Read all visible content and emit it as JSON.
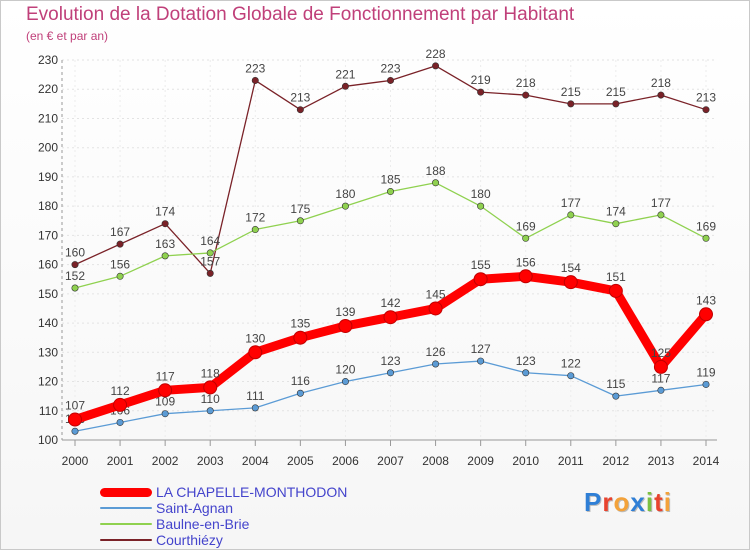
{
  "header": {
    "title": "Evolution de la Dotation Globale de Fonctionnement par Habitant",
    "subtitle": "(en € et par an)"
  },
  "logo": {
    "letters": [
      "P",
      "r",
      "o",
      "x",
      "i",
      "t",
      "i"
    ],
    "colors": [
      "#2f7fd6",
      "#e8432e",
      "#f3a23a",
      "#2f7fd6",
      "#7cc142",
      "#e8432e",
      "#f3a23a"
    ]
  },
  "chart_data": {
    "type": "line",
    "title": "Evolution de la Dotation Globale de Fonctionnement par Habitant",
    "subtitle": "(en € et par an)",
    "xlabel": "",
    "ylabel": "",
    "ylim": [
      100,
      230
    ],
    "yticks": [
      100,
      110,
      120,
      130,
      140,
      150,
      160,
      170,
      180,
      190,
      200,
      210,
      220,
      230
    ],
    "categories": [
      "2000",
      "2001",
      "2002",
      "2003",
      "2004",
      "2005",
      "2006",
      "2007",
      "2008",
      "2009",
      "2010",
      "2011",
      "2012",
      "2013",
      "2014"
    ],
    "grid": true,
    "legend_position": "bottom-left",
    "series": [
      {
        "name": "Courthiézy",
        "color": "#7a2228",
        "values": [
          160,
          167,
          174,
          157,
          223,
          213,
          221,
          223,
          228,
          219,
          218,
          215,
          215,
          218,
          213
        ],
        "labels": [
          "160",
          "167",
          "174",
          "157",
          "223",
          "213",
          "221",
          "223",
          "228",
          "219",
          "218",
          "215",
          "215",
          "218",
          "213"
        ]
      },
      {
        "name": "Baulne-en-Brie",
        "color": "#8fd14f",
        "values": [
          152,
          156,
          163,
          164,
          172,
          175,
          180,
          185,
          188,
          180,
          169,
          177,
          174,
          177,
          169
        ],
        "labels": [
          "152",
          "156",
          "163",
          "164",
          "172",
          "175",
          "180",
          "185",
          "188",
          "180",
          "169",
          "177",
          "174",
          "177",
          "169"
        ]
      },
      {
        "name": "Saint-Agnan",
        "color": "#5b9bd5",
        "values": [
          103,
          106,
          109,
          110,
          111,
          116,
          120,
          123,
          126,
          127,
          123,
          122,
          115,
          117,
          119
        ],
        "labels": [
          "103",
          "106",
          "109",
          "110",
          "111",
          "116",
          "120",
          "123",
          "126",
          "127",
          "123",
          "122",
          "115",
          "117",
          "119"
        ]
      },
      {
        "name": "LA CHAPELLE-MONTHODON",
        "color": "#ff0000",
        "values": [
          107,
          112,
          117,
          118,
          130,
          135,
          139,
          142,
          145,
          155,
          156,
          154,
          151,
          125,
          143
        ],
        "labels": [
          "107",
          "112",
          "117",
          "118",
          "130",
          "135",
          "139",
          "142",
          "145",
          "155",
          "156",
          "154",
          "151",
          "125",
          "143"
        ]
      }
    ],
    "legend_order": [
      "LA CHAPELLE-MONTHODON",
      "Saint-Agnan",
      "Baulne-en-Brie",
      "Courthiézy"
    ]
  }
}
